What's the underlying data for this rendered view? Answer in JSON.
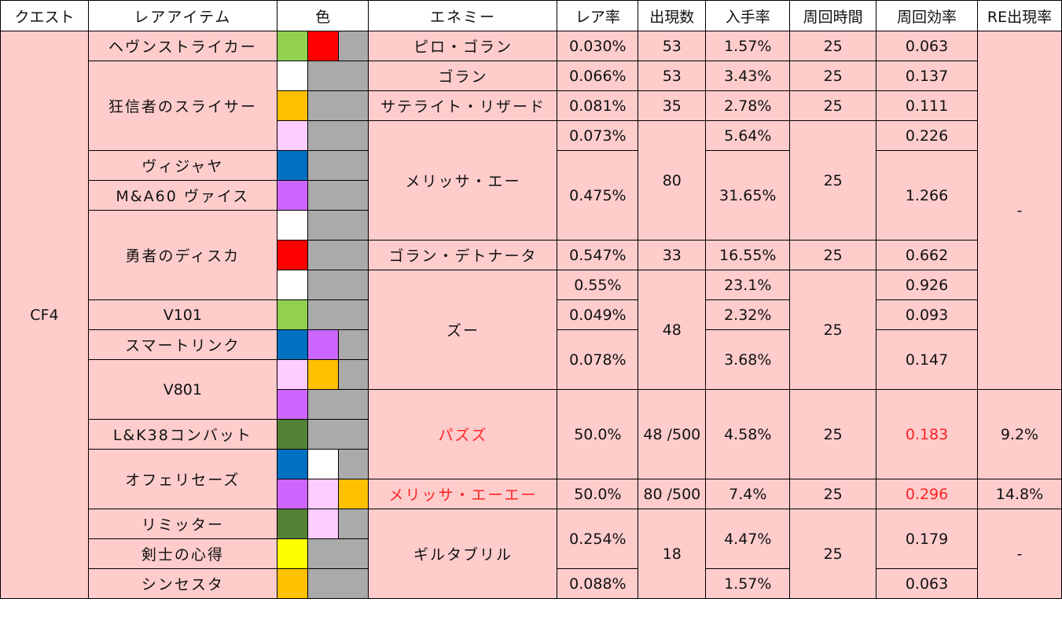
{
  "headers": [
    "クエスト",
    "レアアイテム",
    "色",
    "エネミー",
    "レア率",
    "出現数",
    "入手率",
    "周回時間",
    "周回効率",
    "RE出現率"
  ],
  "quest": "CF4",
  "items": {
    "heaven": "ヘヴンストライカー",
    "kyoshin": "狂信者のスライサー",
    "vijaya": "ヴィジャヤ",
    "ma60": "M&A60 ヴァイス",
    "yusha": "勇者のディスカ",
    "v101": "V101",
    "smart": "スマートリンク",
    "v801": "V801",
    "lk38": "L&K38コンバット",
    "ophelia": "オフェリセーズ",
    "limiter": "リミッター",
    "kenshi": "剣士の心得",
    "synthesta": "シンセスタ"
  },
  "enemies": {
    "piro": "ピロ・ゴラン",
    "goran": "ゴラン",
    "satellite": "サテライト・リザード",
    "melissa": "メリッサ・エー",
    "goran_det": "ゴラン・デトナータ",
    "zu": "ズー",
    "pazuzu": "パズズ",
    "melissa_ee": "メリッサ・エーエー",
    "giltabrill": "ギルタブリル"
  },
  "values": {
    "r1_rare": "0.030%",
    "r1_count": "53",
    "r1_get": "1.57%",
    "r1_time": "25",
    "r1_eff": "0.063",
    "r2_rare": "0.066%",
    "r2_count": "53",
    "r2_get": "3.43%",
    "r2_time": "25",
    "r2_eff": "0.137",
    "r3_rare": "0.081%",
    "r3_count": "35",
    "r3_get": "2.78%",
    "r3_time": "25",
    "r3_eff": "0.111",
    "r4_rare": "0.073%",
    "r4_get": "5.64%",
    "r4_eff": "0.226",
    "mel_count": "80",
    "mel_time": "25",
    "r5_rare": "0.475%",
    "r5_get": "31.65%",
    "r5_eff": "1.266",
    "re_top": "-",
    "r8_rare": "0.547%",
    "r8_count": "33",
    "r8_get": "16.55%",
    "r8_time": "25",
    "r8_eff": "0.662",
    "r9_rare": "0.55%",
    "r9_get": "23.1%",
    "r9_eff": "0.926",
    "zu_count": "48",
    "zu_time": "25",
    "r10_rare": "0.049%",
    "r10_get": "2.32%",
    "r10_eff": "0.093",
    "r11_rare": "0.078%",
    "r11_get": "3.68%",
    "r11_eff": "0.147",
    "paz_rare": "50.0%",
    "paz_count": "48 /500",
    "paz_get": "4.58%",
    "paz_time": "25",
    "paz_eff": "0.183",
    "paz_re": "9.2%",
    "mee_rare": "50.0%",
    "mee_count": "80 /500",
    "mee_get": "7.4%",
    "mee_time": "25",
    "mee_eff": "0.296",
    "mee_re": "14.8%",
    "gil_rare1": "0.254%",
    "gil_count": "18",
    "gil_get1": "4.47%",
    "gil_time": "25",
    "gil_eff1": "0.179",
    "re_bottom": "-",
    "gil_rare2": "0.088%",
    "gil_get2": "1.57%",
    "gil_eff2": "0.063"
  },
  "colors": {
    "gray": "#aaaaaa",
    "light_green": "#92d050",
    "red": "#ff0000",
    "white": "#ffffff",
    "orange": "#ffc000",
    "pink": "#ffccff",
    "blue": "#0070c0",
    "purple": "#cc66ff",
    "dark_green": "#538135",
    "yellow": "#ffff00"
  }
}
